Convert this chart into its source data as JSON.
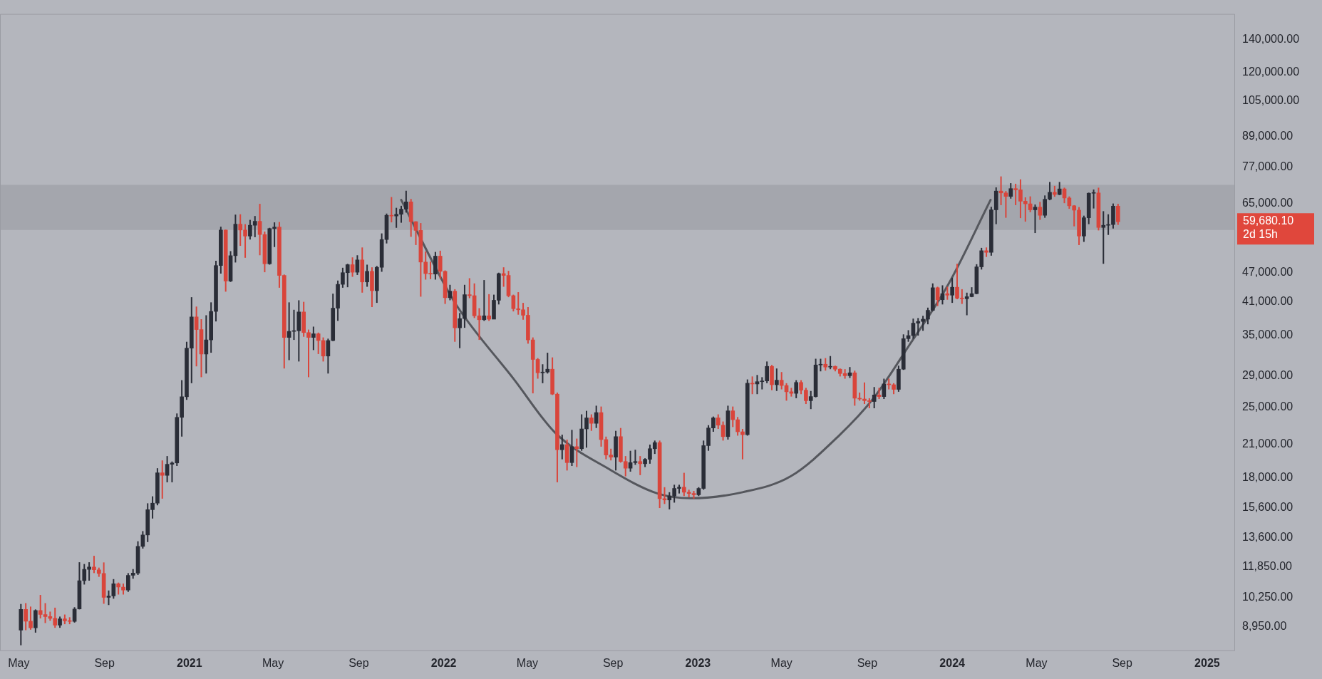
{
  "chart_data": {
    "type": "candlestick",
    "log": true,
    "xlim": [
      "2020-04-04",
      "2025-02-10"
    ],
    "ylim": [
      7980,
      158000
    ],
    "xticks": [
      {
        "value": "2020-05-01",
        "label": "May"
      },
      {
        "value": "2020-09-01",
        "label": "Sep"
      },
      {
        "value": "2021-01-01",
        "label": "2021"
      },
      {
        "value": "2021-05-01",
        "label": "May"
      },
      {
        "value": "2021-09-01",
        "label": "Sep"
      },
      {
        "value": "2022-01-01",
        "label": "2022"
      },
      {
        "value": "2022-05-01",
        "label": "May"
      },
      {
        "value": "2022-09-01",
        "label": "Sep"
      },
      {
        "value": "2023-01-01",
        "label": "2023"
      },
      {
        "value": "2023-05-01",
        "label": "May"
      },
      {
        "value": "2023-09-01",
        "label": "Sep"
      },
      {
        "value": "2024-01-01",
        "label": "2024"
      },
      {
        "value": "2024-05-01",
        "label": "May"
      },
      {
        "value": "2024-09-01",
        "label": "Sep"
      },
      {
        "value": "2025-01-01",
        "label": "2025"
      }
    ],
    "yticks": [
      {
        "value": 8950,
        "label": "8,950.00"
      },
      {
        "value": 10250,
        "label": "10,250.00"
      },
      {
        "value": 11850,
        "label": "11,850.00"
      },
      {
        "value": 13600,
        "label": "13,600.00"
      },
      {
        "value": 15600,
        "label": "15,600.00"
      },
      {
        "value": 18000,
        "label": "18,000.00"
      },
      {
        "value": 21000,
        "label": "21,000.00"
      },
      {
        "value": 25000,
        "label": "25,000.00"
      },
      {
        "value": 29000,
        "label": "29,000.00"
      },
      {
        "value": 35000,
        "label": "35,000.00"
      },
      {
        "value": 41000,
        "label": "41,000.00"
      },
      {
        "value": 47000,
        "label": "47,000.00"
      },
      {
        "value": 65000,
        "label": "65,000.00"
      },
      {
        "value": 77000,
        "label": "77,000.00"
      },
      {
        "value": 89000,
        "label": "89,000.00"
      },
      {
        "value": 105000,
        "label": "105,000.00"
      },
      {
        "value": 120000,
        "label": "120,000.00"
      },
      {
        "value": 140000,
        "label": "140,000.00"
      }
    ],
    "x": [
      "2020-05-04",
      "2020-05-11",
      "2020-05-18",
      "2020-05-25",
      "2020-06-01",
      "2020-06-08",
      "2020-06-15",
      "2020-06-22",
      "2020-06-29",
      "2020-07-06",
      "2020-07-13",
      "2020-07-20",
      "2020-07-27",
      "2020-08-03",
      "2020-08-10",
      "2020-08-17",
      "2020-08-24",
      "2020-08-31",
      "2020-09-07",
      "2020-09-14",
      "2020-09-21",
      "2020-09-28",
      "2020-10-05",
      "2020-10-12",
      "2020-10-19",
      "2020-10-26",
      "2020-11-02",
      "2020-11-09",
      "2020-11-16",
      "2020-11-23",
      "2020-11-30",
      "2020-12-07",
      "2020-12-14",
      "2020-12-21",
      "2020-12-28",
      "2021-01-04",
      "2021-01-11",
      "2021-01-18",
      "2021-01-25",
      "2021-02-01",
      "2021-02-08",
      "2021-02-15",
      "2021-02-22",
      "2021-03-01",
      "2021-03-08",
      "2021-03-15",
      "2021-03-22",
      "2021-03-29",
      "2021-04-05",
      "2021-04-12",
      "2021-04-19",
      "2021-04-26",
      "2021-05-03",
      "2021-05-10",
      "2021-05-17",
      "2021-05-24",
      "2021-05-31",
      "2021-06-07",
      "2021-06-14",
      "2021-06-21",
      "2021-06-28",
      "2021-07-05",
      "2021-07-12",
      "2021-07-19",
      "2021-07-26",
      "2021-08-02",
      "2021-08-09",
      "2021-08-16",
      "2021-08-23",
      "2021-08-30",
      "2021-09-06",
      "2021-09-13",
      "2021-09-20",
      "2021-09-27",
      "2021-10-04",
      "2021-10-11",
      "2021-10-18",
      "2021-10-25",
      "2021-11-01",
      "2021-11-08",
      "2021-11-15",
      "2021-11-22",
      "2021-11-29",
      "2021-12-06",
      "2021-12-13",
      "2021-12-20",
      "2021-12-27",
      "2022-01-03",
      "2022-01-10",
      "2022-01-17",
      "2022-01-24",
      "2022-01-31",
      "2022-02-07",
      "2022-02-14",
      "2022-02-21",
      "2022-02-28",
      "2022-03-07",
      "2022-03-14",
      "2022-03-21",
      "2022-03-28",
      "2022-04-04",
      "2022-04-11",
      "2022-04-18",
      "2022-04-25",
      "2022-05-02",
      "2022-05-09",
      "2022-05-16",
      "2022-05-23",
      "2022-05-30",
      "2022-06-06",
      "2022-06-13",
      "2022-06-20",
      "2022-06-27",
      "2022-07-04",
      "2022-07-11",
      "2022-07-18",
      "2022-07-25",
      "2022-08-01",
      "2022-08-08",
      "2022-08-15",
      "2022-08-22",
      "2022-08-29",
      "2022-09-05",
      "2022-09-12",
      "2022-09-19",
      "2022-09-26",
      "2022-10-03",
      "2022-10-10",
      "2022-10-17",
      "2022-10-24",
      "2022-10-31",
      "2022-11-07",
      "2022-11-14",
      "2022-11-21",
      "2022-11-28",
      "2022-12-05",
      "2022-12-12",
      "2022-12-19",
      "2022-12-26",
      "2023-01-02",
      "2023-01-09",
      "2023-01-16",
      "2023-01-23",
      "2023-01-30",
      "2023-02-06",
      "2023-02-13",
      "2023-02-20",
      "2023-02-27",
      "2023-03-06",
      "2023-03-13",
      "2023-03-20",
      "2023-03-27",
      "2023-04-03",
      "2023-04-10",
      "2023-04-17",
      "2023-04-24",
      "2023-05-01",
      "2023-05-08",
      "2023-05-15",
      "2023-05-22",
      "2023-05-29",
      "2023-06-05",
      "2023-06-12",
      "2023-06-19",
      "2023-06-26",
      "2023-07-03",
      "2023-07-10",
      "2023-07-17",
      "2023-07-24",
      "2023-07-31",
      "2023-08-07",
      "2023-08-14",
      "2023-08-21",
      "2023-08-28",
      "2023-09-04",
      "2023-09-11",
      "2023-09-18",
      "2023-09-25",
      "2023-10-02",
      "2023-10-09",
      "2023-10-16",
      "2023-10-23",
      "2023-10-30",
      "2023-11-06",
      "2023-11-13",
      "2023-11-20",
      "2023-11-27",
      "2023-12-04",
      "2023-12-11",
      "2023-12-18",
      "2023-12-25",
      "2024-01-01",
      "2024-01-08",
      "2024-01-15",
      "2024-01-22",
      "2024-01-29",
      "2024-02-05",
      "2024-02-12",
      "2024-02-19",
      "2024-02-26",
      "2024-03-04",
      "2024-03-11",
      "2024-03-18",
      "2024-03-25",
      "2024-04-01",
      "2024-04-08",
      "2024-04-15",
      "2024-04-22",
      "2024-04-29",
      "2024-05-06",
      "2024-05-13",
      "2024-05-20",
      "2024-05-27",
      "2024-06-03",
      "2024-06-10",
      "2024-06-17",
      "2024-06-24",
      "2024-07-01",
      "2024-07-08",
      "2024-07-15",
      "2024-07-22",
      "2024-07-29",
      "2024-08-05",
      "2024-08-12",
      "2024-08-19",
      "2024-08-26"
    ],
    "ohlc": [
      [
        8800,
        9950,
        8200,
        9700
      ],
      [
        9700,
        9990,
        8800,
        9180
      ],
      [
        9180,
        9830,
        8820,
        8900
      ],
      [
        8900,
        9700,
        8700,
        9650
      ],
      [
        9650,
        10380,
        9300,
        9470
      ],
      [
        9470,
        9990,
        9100,
        9380
      ],
      [
        9380,
        9600,
        9200,
        9300
      ],
      [
        9300,
        9780,
        8900,
        9010
      ],
      [
        9010,
        9380,
        8900,
        9280
      ],
      [
        9280,
        9470,
        9050,
        9190
      ],
      [
        9190,
        9350,
        9050,
        9170
      ],
      [
        9170,
        9800,
        9120,
        9720
      ],
      [
        9720,
        12100,
        9700,
        11100
      ],
      [
        11100,
        12000,
        10900,
        11700
      ],
      [
        11700,
        12100,
        11100,
        11830
      ],
      [
        11830,
        12470,
        11500,
        11680
      ],
      [
        11680,
        11800,
        11300,
        11480
      ],
      [
        11480,
        12090,
        9960,
        10260
      ],
      [
        10260,
        10600,
        9900,
        10330
      ],
      [
        10330,
        11180,
        10200,
        10940
      ],
      [
        10940,
        11000,
        10400,
        10770
      ],
      [
        10770,
        10950,
        10400,
        10620
      ],
      [
        10620,
        11500,
        10530,
        11380
      ],
      [
        11380,
        11720,
        11200,
        11500
      ],
      [
        11500,
        13350,
        11400,
        13030
      ],
      [
        13030,
        14000,
        12900,
        13750
      ],
      [
        13750,
        15950,
        13300,
        15480
      ],
      [
        15480,
        16480,
        14850,
        15960
      ],
      [
        15960,
        18800,
        15800,
        18400
      ],
      [
        18400,
        19500,
        16300,
        18180
      ],
      [
        18180,
        19900,
        17600,
        19150
      ],
      [
        19150,
        19400,
        17600,
        19270
      ],
      [
        19270,
        24300,
        19000,
        23860
      ],
      [
        23860,
        28400,
        21800,
        26280
      ],
      [
        26280,
        34000,
        25900,
        33000
      ],
      [
        33000,
        41900,
        28000,
        38200
      ],
      [
        38200,
        40100,
        30300,
        36000
      ],
      [
        36000,
        37800,
        28800,
        32100
      ],
      [
        32100,
        38500,
        29300,
        34300
      ],
      [
        34300,
        40900,
        32300,
        39200
      ],
      [
        39200,
        49700,
        37400,
        48600
      ],
      [
        48600,
        58300,
        46800,
        57400
      ],
      [
        57400,
        57500,
        43000,
        45200
      ],
      [
        45200,
        52000,
        45000,
        50900
      ],
      [
        50900,
        61700,
        49300,
        59000
      ],
      [
        59000,
        61800,
        53300,
        57400
      ],
      [
        57400,
        59000,
        50400,
        55800
      ],
      [
        55800,
        60200,
        54900,
        58700
      ],
      [
        58700,
        61300,
        55500,
        59800
      ],
      [
        59800,
        64900,
        51000,
        56200
      ],
      [
        56200,
        57000,
        47100,
        49000
      ],
      [
        49000,
        58000,
        48800,
        57800
      ],
      [
        57800,
        59500,
        53000,
        58200
      ],
      [
        58200,
        59600,
        43800,
        46400
      ],
      [
        46400,
        46600,
        30000,
        34700
      ],
      [
        34700,
        40900,
        31200,
        35700
      ],
      [
        35700,
        39500,
        34300,
        35800
      ],
      [
        35800,
        41300,
        31000,
        39100
      ],
      [
        39100,
        41000,
        34800,
        35500
      ],
      [
        35500,
        36000,
        28800,
        34700
      ],
      [
        34700,
        36500,
        32700,
        35300
      ],
      [
        35300,
        35500,
        32100,
        34200
      ],
      [
        34200,
        34700,
        31000,
        31800
      ],
      [
        31800,
        34500,
        29300,
        34200
      ],
      [
        34200,
        42600,
        34100,
        39800
      ],
      [
        39800,
        45300,
        37500,
        44500
      ],
      [
        44500,
        48100,
        43800,
        47000
      ],
      [
        47000,
        49000,
        43900,
        48800
      ],
      [
        48800,
        50500,
        46100,
        47100
      ],
      [
        47100,
        51000,
        46500,
        49900
      ],
      [
        49900,
        52900,
        42800,
        45000
      ],
      [
        45000,
        48800,
        44000,
        47300
      ],
      [
        47300,
        48200,
        40000,
        43200
      ],
      [
        43200,
        48500,
        40800,
        48200
      ],
      [
        48200,
        56500,
        47200,
        54900
      ],
      [
        54900,
        62000,
        53900,
        61500
      ],
      [
        61500,
        67000,
        59500,
        61300
      ],
      [
        61300,
        63700,
        58000,
        61800
      ],
      [
        61800,
        64300,
        59400,
        63300
      ],
      [
        63300,
        69000,
        62300,
        65500
      ],
      [
        65500,
        66400,
        55600,
        59700
      ],
      [
        59700,
        59800,
        53500,
        57300
      ],
      [
        57300,
        59300,
        42000,
        49400
      ],
      [
        49400,
        51900,
        45500,
        46800
      ],
      [
        46800,
        49500,
        45600,
        46700
      ],
      [
        46700,
        51800,
        45500,
        50800
      ],
      [
        50800,
        52100,
        45700,
        47300
      ],
      [
        47300,
        47500,
        40600,
        41800
      ],
      [
        41800,
        44400,
        41300,
        43100
      ],
      [
        43100,
        43500,
        34000,
        36300
      ],
      [
        36300,
        38900,
        33000,
        37900
      ],
      [
        37900,
        44400,
        36300,
        42400
      ],
      [
        42400,
        45800,
        41700,
        42200
      ],
      [
        42200,
        44700,
        38000,
        38400
      ],
      [
        38400,
        39800,
        34300,
        37700
      ],
      [
        37700,
        45400,
        37500,
        38400
      ],
      [
        38400,
        42500,
        37500,
        37800
      ],
      [
        37800,
        42400,
        37800,
        41300
      ],
      [
        41300,
        47000,
        40500,
        46800
      ],
      [
        46800,
        48200,
        44000,
        46400
      ],
      [
        46400,
        47400,
        41900,
        42200
      ],
      [
        42200,
        42400,
        39200,
        39700
      ],
      [
        39700,
        42900,
        38600,
        39500
      ],
      [
        39500,
        40800,
        37700,
        38500
      ],
      [
        38500,
        40000,
        33700,
        34300
      ],
      [
        34300,
        34700,
        26700,
        31300
      ],
      [
        31300,
        31500,
        28600,
        29400
      ],
      [
        29400,
        30600,
        28000,
        29500
      ],
      [
        29500,
        32300,
        29300,
        29900
      ],
      [
        29900,
        31600,
        26500,
        26600
      ],
      [
        26600,
        26800,
        17600,
        20500
      ],
      [
        20500,
        22000,
        19600,
        21000
      ],
      [
        21000,
        21500,
        18600,
        19300
      ],
      [
        19300,
        22500,
        19000,
        20800
      ],
      [
        20800,
        21600,
        18900,
        20600
      ],
      [
        20600,
        24200,
        20400,
        22600
      ],
      [
        22600,
        24600,
        20700,
        23800
      ],
      [
        23800,
        24200,
        22400,
        23200
      ],
      [
        23200,
        25200,
        22700,
        24400
      ],
      [
        24400,
        25100,
        20800,
        21500
      ],
      [
        21500,
        21800,
        19600,
        20000
      ],
      [
        20000,
        20600,
        19500,
        19800
      ],
      [
        19800,
        22400,
        18600,
        21800
      ],
      [
        21800,
        22700,
        19300,
        19400
      ],
      [
        19400,
        19900,
        18100,
        18800
      ],
      [
        18800,
        20400,
        18500,
        19300
      ],
      [
        19300,
        20500,
        19100,
        19400
      ],
      [
        19400,
        19900,
        18200,
        19200
      ],
      [
        19200,
        19700,
        18900,
        19600
      ],
      [
        19600,
        21000,
        19200,
        20600
      ],
      [
        20600,
        21400,
        20100,
        21200
      ],
      [
        21200,
        21400,
        15600,
        16300
      ],
      [
        16300,
        17200,
        15900,
        16200
      ],
      [
        16200,
        16800,
        15500,
        16500
      ],
      [
        16500,
        17400,
        16000,
        17100
      ],
      [
        17100,
        17400,
        16700,
        17200
      ],
      [
        17200,
        18400,
        16500,
        16800
      ],
      [
        16800,
        17000,
        16400,
        16700
      ],
      [
        16700,
        16900,
        16300,
        16600
      ],
      [
        16600,
        17200,
        16500,
        17100
      ],
      [
        17100,
        21400,
        17000,
        20900
      ],
      [
        20900,
        23000,
        20400,
        22700
      ],
      [
        22700,
        23950,
        22300,
        23800
      ],
      [
        23800,
        24200,
        22600,
        23000
      ],
      [
        23000,
        23400,
        21400,
        21800
      ],
      [
        21800,
        25200,
        21500,
        24600
      ],
      [
        24600,
        25100,
        22800,
        23600
      ],
      [
        23600,
        23900,
        21900,
        22300
      ],
      [
        22300,
        22600,
        19600,
        22000
      ],
      [
        22000,
        28500,
        21900,
        28000
      ],
      [
        28000,
        28900,
        26600,
        27900
      ],
      [
        27900,
        29100,
        26600,
        28200
      ],
      [
        28200,
        28800,
        27200,
        28300
      ],
      [
        28300,
        31000,
        28000,
        30300
      ],
      [
        30300,
        30500,
        27100,
        27800
      ],
      [
        27800,
        30000,
        27000,
        28400
      ],
      [
        28400,
        29500,
        27200,
        27700
      ],
      [
        27700,
        28000,
        25800,
        26900
      ],
      [
        26900,
        27400,
        26300,
        26700
      ],
      [
        26700,
        28400,
        26100,
        28100
      ],
      [
        28100,
        28400,
        26600,
        27100
      ],
      [
        27100,
        27400,
        25400,
        25800
      ],
      [
        25800,
        27000,
        24800,
        26300
      ],
      [
        26300,
        31400,
        26200,
        30500
      ],
      [
        30500,
        31400,
        29600,
        30600
      ],
      [
        30600,
        31500,
        29700,
        30200
      ],
      [
        30200,
        31800,
        29900,
        30300
      ],
      [
        30300,
        30400,
        29600,
        29900
      ],
      [
        29900,
        30000,
        28900,
        29300
      ],
      [
        29300,
        29900,
        28600,
        29000
      ],
      [
        29000,
        30200,
        28700,
        29400
      ],
      [
        29400,
        29700,
        25200,
        26100
      ],
      [
        26100,
        26800,
        25800,
        26000
      ],
      [
        26000,
        28100,
        25400,
        25800
      ],
      [
        25800,
        26100,
        24900,
        25700
      ],
      [
        25700,
        27500,
        24900,
        26500
      ],
      [
        26500,
        27400,
        26000,
        26300
      ],
      [
        26300,
        28600,
        26000,
        27900
      ],
      [
        27900,
        28600,
        27200,
        27800
      ],
      [
        27800,
        28000,
        26600,
        27200
      ],
      [
        27200,
        30400,
        26900,
        29900
      ],
      [
        29900,
        35200,
        29800,
        34500
      ],
      [
        34500,
        35900,
        34000,
        35000
      ],
      [
        35000,
        37900,
        34500,
        37100
      ],
      [
        37100,
        38000,
        35000,
        37400
      ],
      [
        37400,
        38400,
        35800,
        37800
      ],
      [
        37800,
        39900,
        36900,
        39400
      ],
      [
        39400,
        44700,
        39300,
        43800
      ],
      [
        43800,
        44000,
        40200,
        41400
      ],
      [
        41400,
        44300,
        40500,
        42600
      ],
      [
        42600,
        44000,
        41400,
        42300
      ],
      [
        42300,
        45900,
        40800,
        43900
      ],
      [
        43900,
        49000,
        41500,
        41700
      ],
      [
        41700,
        43500,
        40600,
        41600
      ],
      [
        41600,
        42800,
        38500,
        42000
      ],
      [
        42000,
        43900,
        41900,
        42600
      ],
      [
        42600,
        48900,
        42500,
        48300
      ],
      [
        48300,
        52800,
        47700,
        52100
      ],
      [
        52100,
        52900,
        50600,
        51700
      ],
      [
        51700,
        64000,
        50900,
        63100
      ],
      [
        63100,
        70100,
        59000,
        68900
      ],
      [
        68900,
        73800,
        64500,
        68300
      ],
      [
        68300,
        68900,
        60800,
        67200
      ],
      [
        67200,
        71500,
        66500,
        69700
      ],
      [
        69700,
        71300,
        64500,
        69300
      ],
      [
        69300,
        72800,
        60700,
        65700
      ],
      [
        65700,
        66900,
        59700,
        64900
      ],
      [
        64900,
        67200,
        62400,
        63100
      ],
      [
        63100,
        64700,
        56600,
        63900
      ],
      [
        63900,
        65500,
        60200,
        61500
      ],
      [
        61500,
        67500,
        60800,
        66300
      ],
      [
        66300,
        71900,
        66000,
        68500
      ],
      [
        68500,
        70600,
        67100,
        67800
      ],
      [
        67800,
        71900,
        67600,
        69600
      ],
      [
        69600,
        70000,
        65100,
        66700
      ],
      [
        66700,
        67200,
        63400,
        64300
      ],
      [
        64300,
        64500,
        58400,
        63000
      ],
      [
        63000,
        63900,
        53500,
        55800
      ],
      [
        55800,
        61400,
        54300,
        60800
      ],
      [
        60800,
        68400,
        59000,
        68200
      ],
      [
        68200,
        69400,
        63500,
        68300
      ],
      [
        68300,
        70000,
        57300,
        58100
      ],
      [
        58100,
        62700,
        49000,
        58700
      ],
      [
        58700,
        61800,
        56100,
        58900
      ],
      [
        58900,
        65000,
        57800,
        64200
      ],
      [
        64200,
        64900,
        58800,
        59680.1
      ]
    ],
    "colors": [
      "#2a2d37",
      "#d9453b",
      "#d9453b",
      "#2a2d37",
      "#d9453b",
      "#d9453b",
      "#d9453b",
      "#d9453b",
      "#2a2d37",
      "#d9453b",
      "#d9453b",
      "#2a2d37",
      "#2a2d37",
      "#2a2d37",
      "#2a2d37",
      "#d9453b",
      "#d9453b",
      "#d9453b",
      "#2a2d37",
      "#2a2d37",
      "#d9453b",
      "#d9453b",
      "#2a2d37",
      "#2a2d37",
      "#2a2d37",
      "#2a2d37",
      "#2a2d37",
      "#2a2d37",
      "#2a2d37",
      "#d9453b",
      "#2a2d37",
      "#2a2d37",
      "#2a2d37",
      "#2a2d37",
      "#2a2d37",
      "#2a2d37",
      "#d9453b",
      "#d9453b",
      "#2a2d37",
      "#2a2d37",
      "#2a2d37",
      "#2a2d37",
      "#d9453b",
      "#2a2d37",
      "#2a2d37",
      "#d9453b",
      "#d9453b",
      "#2a2d37",
      "#2a2d37",
      "#d9453b",
      "#d9453b",
      "#2a2d37",
      "#2a2d37",
      "#d9453b",
      "#d9453b",
      "#2a2d37",
      "#2a2d37",
      "#2a2d37",
      "#d9453b",
      "#d9453b",
      "#2a2d37",
      "#d9453b",
      "#d9453b",
      "#2a2d37",
      "#2a2d37",
      "#2a2d37",
      "#2a2d37",
      "#2a2d37",
      "#d9453b",
      "#2a2d37",
      "#d9453b",
      "#2a2d37",
      "#d9453b",
      "#2a2d37",
      "#2a2d37",
      "#2a2d37",
      "#d9453b",
      "#2a2d37",
      "#2a2d37",
      "#2a2d37",
      "#d9453b",
      "#d9453b",
      "#d9453b",
      "#d9453b",
      "#d9453b",
      "#2a2d37",
      "#d9453b",
      "#d9453b",
      "#2a2d37",
      "#d9453b",
      "#2a2d37",
      "#2a2d37",
      "#d9453b",
      "#d9453b",
      "#d9453b",
      "#2a2d37",
      "#d9453b",
      "#2a2d37",
      "#2a2d37",
      "#d9453b",
      "#d9453b",
      "#d9453b",
      "#d9453b",
      "#d9453b",
      "#d9453b",
      "#d9453b",
      "#d9453b",
      "#2a2d37",
      "#2a2d37",
      "#d9453b",
      "#d9453b",
      "#2a2d37",
      "#d9453b",
      "#2a2d37",
      "#d9453b",
      "#2a2d37",
      "#2a2d37",
      "#d9453b",
      "#2a2d37",
      "#d9453b",
      "#d9453b",
      "#d9453b",
      "#2a2d37",
      "#d9453b",
      "#d9453b",
      "#2a2d37",
      "#2a2d37",
      "#d9453b",
      "#2a2d37",
      "#2a2d37",
      "#2a2d37",
      "#d9453b",
      "#d9453b",
      "#2a2d37",
      "#2a2d37",
      "#2a2d37",
      "#d9453b",
      "#d9453b",
      "#d9453b",
      "#2a2d37",
      "#2a2d37",
      "#2a2d37",
      "#2a2d37",
      "#d9453b",
      "#d9453b",
      "#2a2d37",
      "#d9453b",
      "#d9453b",
      "#d9453b",
      "#2a2d37",
      "#d9453b",
      "#2a2d37",
      "#2a2d37",
      "#2a2d37",
      "#d9453b",
      "#2a2d37",
      "#d9453b",
      "#d9453b",
      "#d9453b",
      "#2a2d37",
      "#d9453b",
      "#d9453b",
      "#2a2d37",
      "#2a2d37",
      "#2a2d37",
      "#d9453b",
      "#2a2d37",
      "#d9453b",
      "#d9453b",
      "#d9453b",
      "#2a2d37",
      "#d9453b",
      "#d9453b",
      "#d9453b",
      "#d9453b",
      "#2a2d37",
      "#d9453b",
      "#2a2d37",
      "#d9453b",
      "#d9453b",
      "#2a2d37",
      "#2a2d37",
      "#2a2d37",
      "#2a2d37",
      "#2a2d37",
      "#2a2d37",
      "#2a2d37",
      "#2a2d37",
      "#d9453b",
      "#2a2d37",
      "#d9453b",
      "#2a2d37",
      "#d9453b",
      "#d9453b",
      "#2a2d37",
      "#2a2d37",
      "#2a2d37",
      "#2a2d37",
      "#d9453b",
      "#2a2d37",
      "#2a2d37",
      "#d9453b",
      "#d9453b",
      "#2a2d37",
      "#d9453b",
      "#d9453b",
      "#d9453b",
      "#d9453b",
      "#2a2d37",
      "#d9453b",
      "#2a2d37",
      "#2a2d37",
      "#d9453b",
      "#2a2d37",
      "#d9453b",
      "#d9453b",
      "#d9453b",
      "#d9453b",
      "#2a2d37",
      "#2a2d37",
      "#2a2d37",
      "#d9453b",
      "#2a2d37",
      "#2a2d37",
      "#2a2d37",
      "#d9453b"
    ],
    "series": [
      {
        "type": "line",
        "color": "#55575d",
        "x": [
          "2021-11-01",
          "2021-12-30",
          "2022-01-20",
          "2022-04-12",
          "2022-06-10",
          "2022-08-27",
          "2022-11-04",
          "2022-12-21",
          "2023-03-06",
          "2023-05-14",
          "2023-07-21",
          "2023-09-10",
          "2023-10-31",
          "2023-12-26",
          "2024-02-25"
        ],
        "values": [
          66100,
          45300,
          40200,
          28500,
          22200,
          18700,
          16700,
          16330,
          16800,
          18100,
          21800,
          26100,
          33400,
          44400,
          66100
        ]
      }
    ],
    "bands": [
      {
        "axis": "y",
        "from": 57400,
        "to": 70900,
        "color": "#a4a6ad"
      }
    ],
    "annotations": [
      "59,680.10",
      "2d 15h"
    ]
  }
}
